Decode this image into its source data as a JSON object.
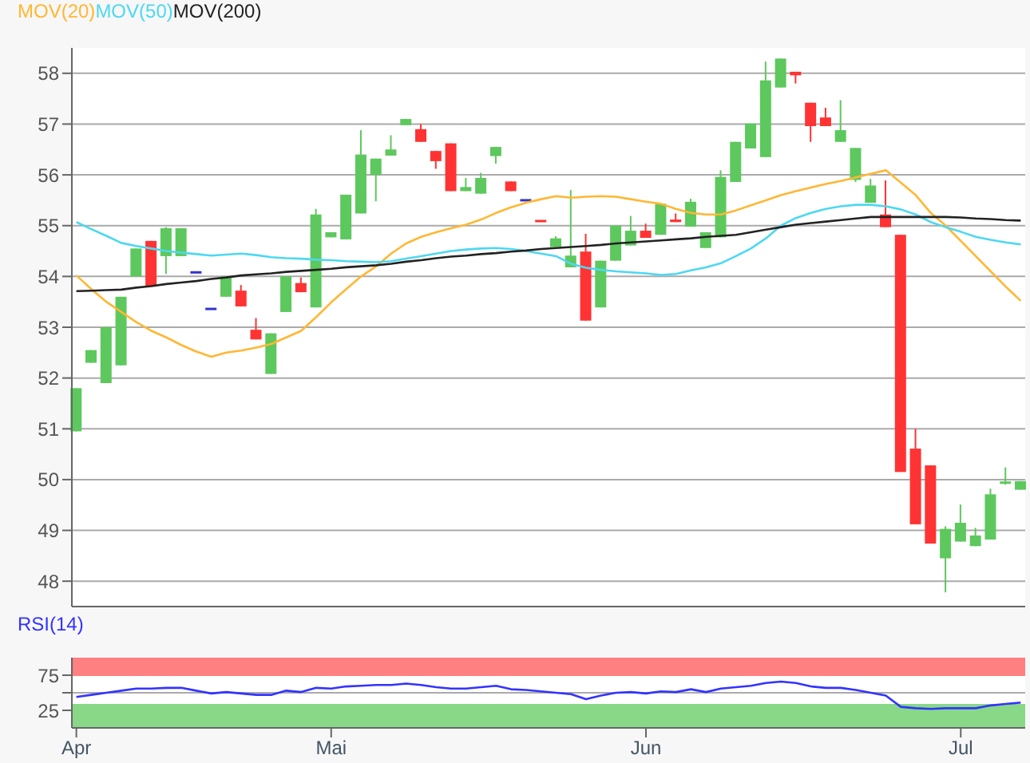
{
  "chart_data": [
    {
      "type": "candlestick",
      "categories": [
        null,
        null,
        null,
        null,
        null,
        null,
        null,
        null,
        null,
        null,
        null,
        null,
        null,
        null,
        null,
        null,
        null,
        null,
        null,
        null,
        null,
        null,
        null,
        null,
        null,
        null,
        null,
        null,
        null,
        null,
        null,
        null,
        null,
        null,
        null,
        null,
        null,
        null,
        null,
        null,
        null,
        null,
        null,
        null,
        null,
        null,
        null,
        null,
        null,
        null,
        null,
        null,
        null,
        null,
        null,
        null,
        null,
        null,
        null,
        null,
        null,
        null,
        null,
        null
      ],
      "series": [
        {
          "type": "candlestick",
          "ohlc": [
            [
              50.95,
              51.8,
              50.95,
              51.8
            ],
            [
              52.3,
              52.55,
              52.3,
              52.55
            ],
            [
              51.9,
              53.0,
              51.9,
              53.0
            ],
            [
              52.25,
              53.6,
              52.25,
              53.6
            ],
            [
              54.0,
              54.55,
              54.0,
              54.55
            ],
            [
              54.7,
              54.7,
              53.8,
              53.8
            ],
            [
              54.4,
              54.97,
              54.05,
              54.95
            ],
            [
              54.4,
              54.95,
              54.4,
              54.95
            ],
            [
              54.08,
              54.08,
              54.08,
              54.08
            ],
            [
              53.36,
              53.36,
              53.36,
              53.36
            ],
            [
              53.6,
              54.0,
              53.6,
              54.0
            ],
            [
              53.72,
              53.83,
              53.41,
              53.41
            ],
            [
              52.95,
              53.18,
              52.76,
              52.76
            ],
            [
              52.08,
              52.88,
              52.08,
              52.88
            ],
            [
              53.3,
              54.0,
              53.3,
              54.0
            ],
            [
              53.87,
              53.98,
              53.69,
              53.69
            ],
            [
              53.39,
              55.33,
              53.39,
              55.22
            ],
            [
              54.77,
              54.87,
              54.77,
              54.87
            ],
            [
              54.73,
              55.61,
              54.73,
              55.61
            ],
            [
              55.24,
              56.88,
              55.24,
              56.4
            ],
            [
              56.0,
              56.32,
              55.48,
              56.32
            ],
            [
              56.38,
              56.78,
              56.38,
              56.5
            ],
            [
              56.98,
              57.1,
              56.98,
              57.1
            ],
            [
              56.9,
              57.0,
              56.65,
              56.65
            ],
            [
              56.47,
              56.47,
              56.12,
              56.27
            ],
            [
              56.62,
              56.62,
              55.68,
              55.68
            ],
            [
              55.68,
              55.94,
              55.68,
              55.76
            ],
            [
              55.63,
              56.04,
              55.63,
              55.94
            ],
            [
              56.37,
              56.55,
              56.22,
              56.55
            ],
            [
              55.87,
              55.87,
              55.68,
              55.68
            ],
            [
              55.5,
              55.5,
              55.5,
              55.5
            ],
            [
              55.09,
              55.09,
              55.09,
              55.09
            ],
            [
              54.58,
              54.79,
              54.58,
              54.75
            ],
            [
              54.18,
              55.7,
              54.18,
              54.41
            ],
            [
              54.49,
              54.84,
              53.13,
              53.13
            ],
            [
              53.39,
              54.31,
              53.39,
              54.31
            ],
            [
              54.31,
              55.0,
              54.31,
              55.0
            ],
            [
              54.61,
              55.19,
              54.61,
              54.9
            ],
            [
              54.9,
              55.04,
              54.76,
              54.76
            ],
            [
              54.82,
              55.43,
              54.82,
              55.43
            ],
            [
              55.12,
              55.24,
              55.07,
              55.07
            ],
            [
              54.98,
              55.53,
              54.98,
              55.47
            ],
            [
              54.56,
              54.87,
              54.56,
              54.87
            ],
            [
              54.77,
              56.09,
              54.77,
              55.96
            ],
            [
              55.86,
              56.65,
              55.86,
              56.65
            ],
            [
              56.52,
              57.01,
              56.52,
              57.01
            ],
            [
              56.35,
              58.23,
              56.35,
              57.86
            ],
            [
              57.72,
              58.29,
              57.72,
              58.29
            ],
            [
              58.03,
              58.03,
              57.8,
              57.96
            ],
            [
              57.42,
              57.42,
              56.65,
              56.96
            ],
            [
              57.13,
              57.32,
              56.96,
              56.96
            ],
            [
              56.65,
              57.47,
              56.65,
              56.88
            ],
            [
              55.9,
              56.53,
              55.86,
              56.53
            ],
            [
              55.45,
              55.92,
              55.45,
              55.79
            ],
            [
              55.22,
              55.89,
              54.97,
              54.97
            ],
            [
              54.82,
              54.82,
              50.15,
              50.15
            ],
            [
              50.61,
              51.0,
              49.12,
              49.12
            ],
            [
              50.28,
              50.28,
              48.74,
              48.74
            ],
            [
              48.45,
              49.08,
              47.78,
              49.03
            ],
            [
              48.78,
              49.51,
              48.78,
              49.15
            ],
            [
              48.69,
              49.05,
              48.69,
              48.9
            ],
            [
              48.82,
              49.82,
              48.82,
              49.71
            ],
            [
              49.9,
              50.24,
              49.9,
              49.94
            ],
            [
              49.8,
              49.97,
              49.8,
              49.97
            ]
          ],
          "colors": [
            "#5dc85d",
            "#5dc85d",
            "#5dc85d",
            "#5dc85d",
            "#5dc85d",
            "#ff3333",
            "#5dc85d",
            "#5dc85d",
            "#3333cc",
            "#3333cc",
            "#5dc85d",
            "#ff3333",
            "#ff3333",
            "#5dc85d",
            "#5dc85d",
            "#ff3333",
            "#5dc85d",
            "#5dc85d",
            "#5dc85d",
            "#5dc85d",
            "#5dc85d",
            "#5dc85d",
            "#5dc85d",
            "#ff3333",
            "#ff3333",
            "#ff3333",
            "#5dc85d",
            "#5dc85d",
            "#5dc85d",
            "#ff3333",
            "#3333cc",
            "#ff3333",
            "#5dc85d",
            "#5dc85d",
            "#ff3333",
            "#5dc85d",
            "#5dc85d",
            "#5dc85d",
            "#ff3333",
            "#5dc85d",
            "#ff3333",
            "#5dc85d",
            "#5dc85d",
            "#5dc85d",
            "#5dc85d",
            "#5dc85d",
            "#5dc85d",
            "#5dc85d",
            "#ff3333",
            "#ff3333",
            "#ff3333",
            "#5dc85d",
            "#5dc85d",
            "#5dc85d",
            "#ff3333",
            "#ff3333",
            "#ff3333",
            "#ff3333",
            "#5dc85d",
            "#5dc85d",
            "#5dc85d",
            "#5dc85d",
            "#5dc85d",
            "#5dc85d"
          ]
        },
        {
          "type": "line",
          "name": "MOV(20)",
          "color": "#ffb733",
          "values": [
            54.02,
            53.75,
            53.5,
            53.3,
            53.1,
            52.93,
            52.8,
            52.65,
            52.52,
            52.42,
            52.5,
            52.54,
            52.6,
            52.67,
            52.8,
            52.93,
            53.2,
            53.49,
            53.75,
            54.0,
            54.2,
            54.45,
            54.65,
            54.78,
            54.87,
            54.95,
            55.02,
            55.12,
            55.25,
            55.36,
            55.45,
            55.52,
            55.58,
            55.55,
            55.57,
            55.58,
            55.57,
            55.52,
            55.47,
            55.43,
            55.33,
            55.25,
            55.22,
            55.22,
            55.3,
            55.4,
            55.5,
            55.6,
            55.68,
            55.75,
            55.82,
            55.88,
            55.95,
            56.02,
            56.09,
            55.85,
            55.6,
            55.25,
            55.0,
            54.7,
            54.4,
            54.1,
            53.8,
            53.52
          ]
        },
        {
          "type": "line",
          "name": "MOV(50)",
          "color": "#4dd8f0",
          "values": [
            55.07,
            54.93,
            54.8,
            54.66,
            54.6,
            54.55,
            54.5,
            54.47,
            54.44,
            54.41,
            54.43,
            54.45,
            54.42,
            54.38,
            54.36,
            54.35,
            54.33,
            54.32,
            54.3,
            54.29,
            54.28,
            54.3,
            54.35,
            54.4,
            54.45,
            54.5,
            54.53,
            54.55,
            54.56,
            54.54,
            54.5,
            54.45,
            54.4,
            54.25,
            54.17,
            54.13,
            54.1,
            54.08,
            54.06,
            54.03,
            54.05,
            54.12,
            54.18,
            54.26,
            54.4,
            54.55,
            54.75,
            55.0,
            55.15,
            55.25,
            55.33,
            55.38,
            55.41,
            55.41,
            55.38,
            55.32,
            55.22,
            55.07,
            54.97,
            54.88,
            54.78,
            54.72,
            54.67,
            54.63
          ]
        },
        {
          "type": "line",
          "name": "MOV(200)",
          "color": "#222222",
          "values": [
            53.71,
            53.72,
            53.73,
            53.74,
            53.78,
            53.81,
            53.85,
            53.88,
            53.91,
            53.95,
            53.98,
            54.02,
            54.04,
            54.06,
            54.09,
            54.11,
            54.13,
            54.15,
            54.18,
            54.2,
            54.22,
            54.25,
            54.29,
            54.32,
            54.36,
            54.39,
            54.41,
            54.44,
            54.46,
            54.49,
            54.51,
            54.54,
            54.56,
            54.58,
            54.6,
            54.62,
            54.65,
            54.67,
            54.69,
            54.71,
            54.73,
            54.75,
            54.78,
            54.8,
            54.82,
            54.87,
            54.92,
            54.97,
            55.02,
            55.05,
            55.08,
            55.11,
            55.14,
            55.17,
            55.17,
            55.17,
            55.17,
            55.17,
            55.17,
            55.16,
            55.14,
            55.13,
            55.11,
            55.1
          ]
        }
      ],
      "ylim": [
        47.5,
        58.5
      ],
      "yticks": [
        48,
        49,
        50,
        51,
        52,
        53,
        54,
        55,
        56,
        57,
        58
      ],
      "grid": "y",
      "legend": "top left",
      "tick_labels": "y"
    },
    {
      "type": "line",
      "categories": [
        "Apr",
        null,
        null,
        null,
        null,
        null,
        null,
        null,
        null,
        null,
        null,
        null,
        null,
        null,
        null,
        null,
        null,
        "Mai",
        null,
        null,
        null,
        null,
        null,
        null,
        null,
        null,
        null,
        null,
        null,
        null,
        null,
        null,
        null,
        null,
        null,
        null,
        null,
        null,
        "Jun",
        null,
        null,
        null,
        null,
        null,
        null,
        null,
        null,
        null,
        null,
        null,
        null,
        null,
        null,
        null,
        null,
        null,
        null,
        null,
        null,
        "Jul",
        null,
        null,
        null,
        null
      ],
      "series": [
        {
          "name": "RSI(14)",
          "color": "#3333ff",
          "values": [
            44,
            47,
            50,
            53,
            56,
            56,
            57,
            57,
            53,
            49,
            51,
            49,
            47,
            47,
            53,
            51,
            57,
            56,
            59,
            60,
            61,
            61,
            63,
            61,
            58,
            56,
            56,
            58,
            60,
            55,
            54,
            52,
            50,
            48,
            41,
            46,
            50,
            51,
            49,
            52,
            51,
            55,
            51,
            56,
            58,
            60,
            64,
            66,
            64,
            59,
            57,
            57,
            54,
            50,
            46,
            30,
            28,
            27,
            28,
            28,
            28,
            32,
            34,
            36
          ]
        }
      ],
      "ylim": [
        0,
        100
      ],
      "yticks": [
        25,
        {
          "value": 50,
          "label": null
        },
        75
      ],
      "grid": "y",
      "legend": "top left",
      "bands": [
        {
          "axis": "y",
          "from": 75,
          "to": 100,
          "color": "#ff8080"
        },
        {
          "axis": "y",
          "from": 0,
          "to": 33,
          "color": "#88d888"
        }
      ]
    }
  ]
}
